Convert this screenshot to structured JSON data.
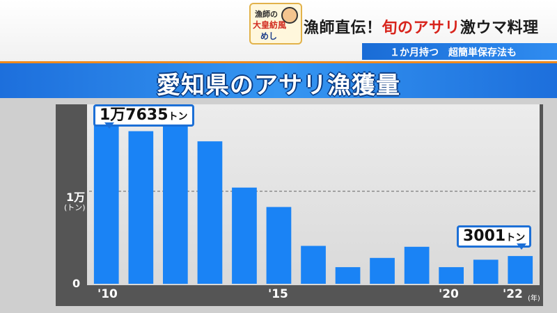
{
  "header": {
    "logo_lines": [
      "漁師の",
      "大皇紡風",
      "めし"
    ],
    "headline_a": "漁師直伝！",
    "headline_b": "旬のアサリ",
    "headline_c": "激ウマ料理",
    "subline": "１か月持つ　超簡単保存法も"
  },
  "chart_data": {
    "type": "bar",
    "title": "愛知県のアサリ漁獲量",
    "categories": [
      "2010",
      "2011",
      "2012",
      "2013",
      "2014",
      "2015",
      "2016",
      "2017",
      "2018",
      "2019",
      "2020",
      "2021",
      "2022"
    ],
    "values": [
      17635,
      16500,
      17500,
      15400,
      10400,
      8300,
      4100,
      1800,
      2800,
      4000,
      1800,
      2600,
      3001
    ],
    "ylim": [
      0,
      20000
    ],
    "y_ticks": [
      {
        "value": 0,
        "label": "0"
      },
      {
        "value": 10000,
        "label": "1万"
      }
    ],
    "y_unit": "(トン)",
    "x_tick_labels": [
      {
        "index": 0,
        "label": "'10"
      },
      {
        "index": 5,
        "label": "'15"
      },
      {
        "index": 10,
        "label": "'20"
      },
      {
        "index": 12,
        "label": "'22"
      }
    ],
    "x_unit": "(年)",
    "reference_line": 10000,
    "bar_color": "#1a83f5",
    "annotations": [
      {
        "index": 0,
        "value_text": "1万7635",
        "unit": "トン"
      },
      {
        "index": 12,
        "value_text": "3001",
        "unit": "トン"
      }
    ]
  }
}
